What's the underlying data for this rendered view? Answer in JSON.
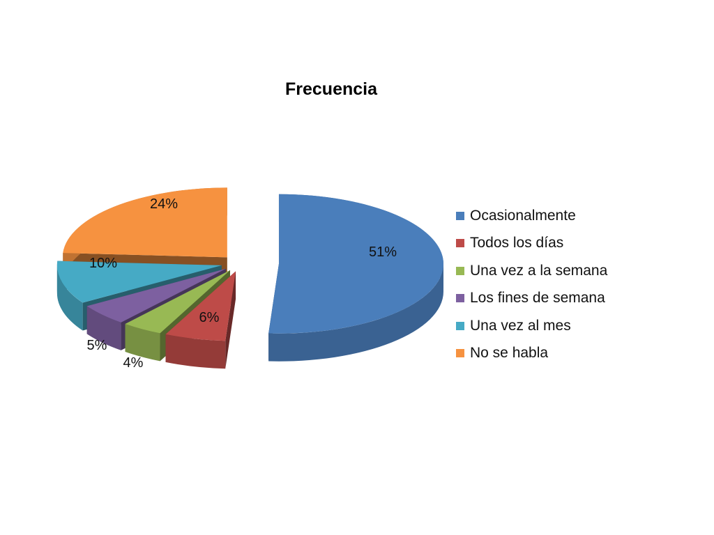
{
  "chart_data": {
    "type": "pie",
    "title": "Frecuencia",
    "slices": [
      {
        "label": "Ocasionalmente",
        "value": 51,
        "display": "51%",
        "color": "#4A7EBB"
      },
      {
        "label": "Todos los días",
        "value": 6,
        "display": "6%",
        "color": "#BE4B48"
      },
      {
        "label": "Una vez a la semana",
        "value": 4,
        "display": "4%",
        "color": "#98B954"
      },
      {
        "label": "Los fines de semana",
        "value": 5,
        "display": "5%",
        "color": "#7D60A0"
      },
      {
        "label": "Una vez al mes",
        "value": 10,
        "display": "10%",
        "color": "#46AAC5"
      },
      {
        "label": "No se habla",
        "value": 24,
        "display": "24%",
        "color": "#F69240"
      }
    ],
    "legend_position": "right",
    "style": "3d-exploded"
  }
}
